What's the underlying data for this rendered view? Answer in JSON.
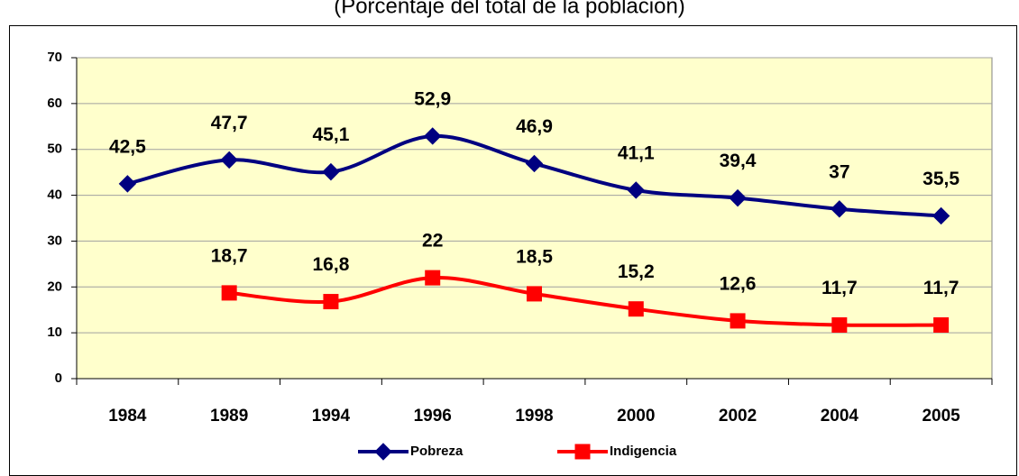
{
  "chart_data": {
    "type": "line",
    "subtitle": "(Porcentaje del total de la población)",
    "categories": [
      "1984",
      "1989",
      "1994",
      "1996",
      "1998",
      "2000",
      "2002",
      "2004",
      "2005"
    ],
    "series": [
      {
        "name": "Pobreza",
        "color": "#000080",
        "marker": "diamond",
        "values": [
          42.5,
          47.7,
          45.1,
          52.9,
          46.9,
          41.1,
          39.4,
          37,
          35.5
        ],
        "value_labels": [
          "42,5",
          "47,7",
          "45,1",
          "52,9",
          "46,9",
          "41,1",
          "39,4",
          "37",
          "35,5"
        ]
      },
      {
        "name": "Indigencia",
        "color": "#ff0000",
        "marker": "square",
        "values": [
          null,
          18.7,
          16.8,
          22,
          18.5,
          15.2,
          12.6,
          11.7,
          11.7
        ],
        "value_labels": [
          null,
          "18,7",
          "16,8",
          "22",
          "18,5",
          "15,2",
          "12,6",
          "11,7",
          "11,7"
        ]
      }
    ],
    "ylim": [
      0,
      70
    ],
    "yticks": [
      0,
      10,
      20,
      30,
      40,
      50,
      60,
      70
    ],
    "grid": true,
    "plot_background": "#ffffcc",
    "legend": "bottom"
  }
}
